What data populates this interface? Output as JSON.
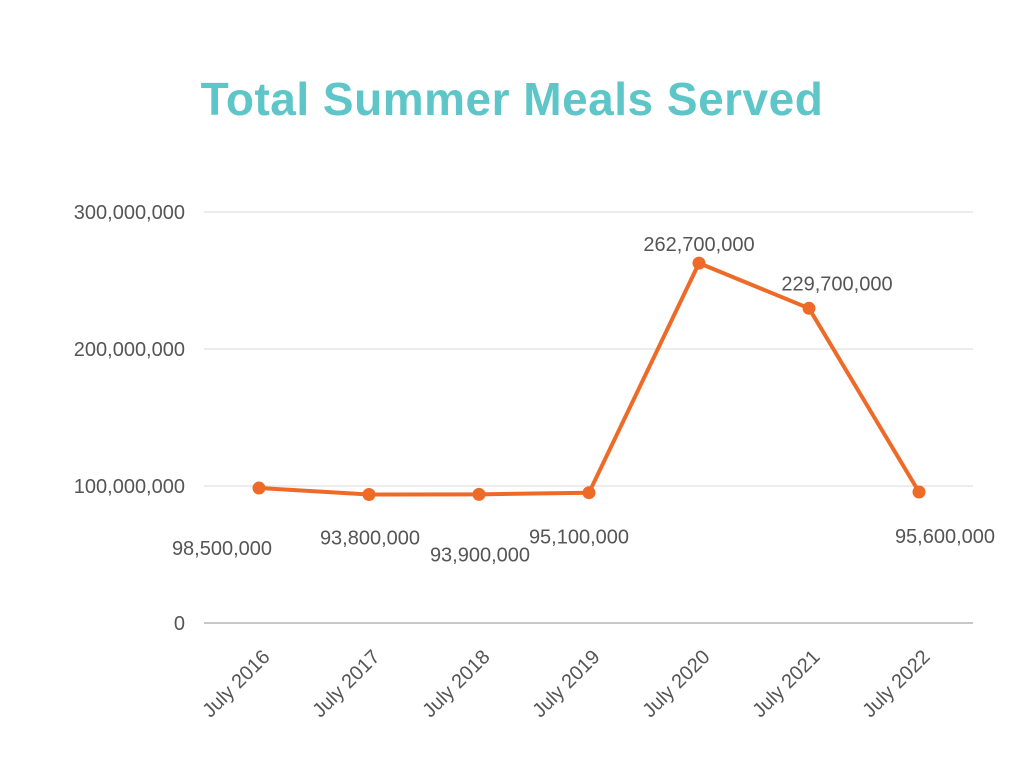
{
  "chart_data": {
    "type": "line",
    "title": "Total Summer Meals Served",
    "categories": [
      "July 2016",
      "July 2017",
      "July 2018",
      "July 2019",
      "July 2020",
      "July 2021",
      "July 2022"
    ],
    "series": [
      {
        "values": [
          98500000,
          93800000,
          93900000,
          95100000,
          262700000,
          229700000,
          95600000
        ],
        "data_labels": [
          "98,500,000",
          "93,800,000",
          "93,900,000",
          "95,100,000",
          "262,700,000",
          "229,700,000",
          "95,600,000"
        ]
      }
    ],
    "ylim": [
      0,
      300000000
    ],
    "y_ticks": [
      0,
      100000000,
      200000000,
      300000000
    ],
    "y_tick_labels": [
      "0",
      "100,000,000",
      "200,000,000",
      "300,000,000"
    ],
    "grid": true,
    "colors": {
      "title": "#5ec5c8",
      "line": "#ee6a28",
      "grid": "#d9d9d9",
      "axis": "#a6a6a6",
      "text": "#555555"
    }
  }
}
